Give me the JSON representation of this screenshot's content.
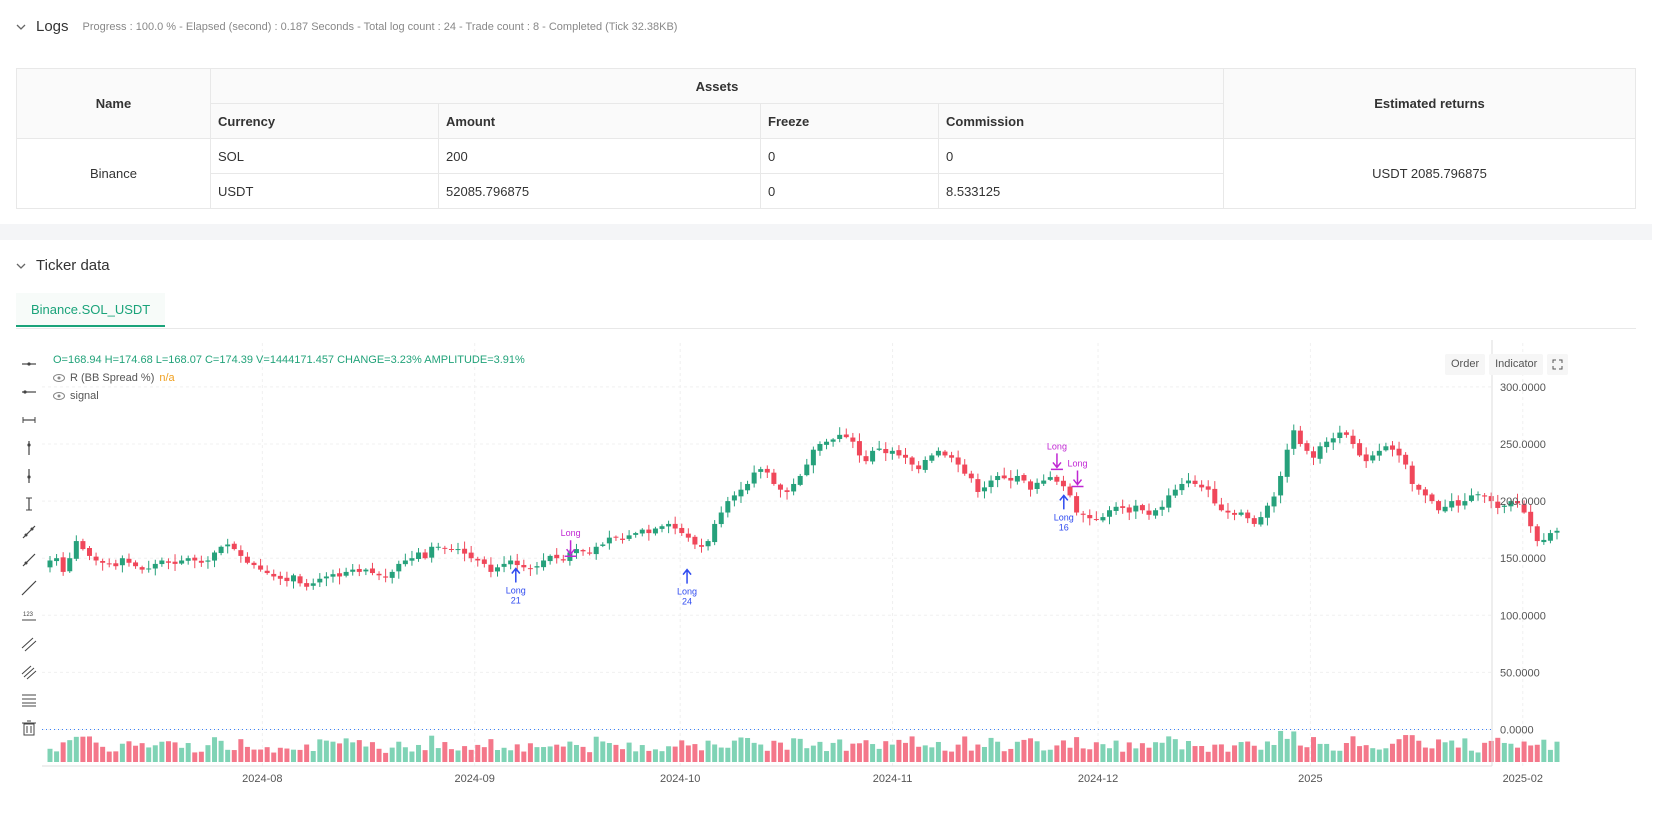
{
  "logs": {
    "title": "Logs",
    "summary": "Progress : 100.0 % - Elapsed (second) : 0.187  Seconds - Total log count : 24 - Trade count : 8 - Completed (Tick 32.38KB)"
  },
  "assets_table": {
    "col_name": "Name",
    "col_assets": "Assets",
    "col_returns": "Estimated returns",
    "sub_currency": "Currency",
    "sub_amount": "Amount",
    "sub_freeze": "Freeze",
    "sub_commission": "Commission",
    "exchange": "Binance",
    "rows": [
      {
        "currency": "SOL",
        "amount": "200",
        "freeze": "0",
        "commission": "0"
      },
      {
        "currency": "USDT",
        "amount": "52085.796875",
        "freeze": "0",
        "commission": "8.533125"
      }
    ],
    "returns": "USDT 2085.796875"
  },
  "ticker": {
    "title": "Ticker data",
    "tab": "Binance.SOL_USDT",
    "ohlc": "O=168.94 H=174.68 L=168.07 C=174.39 V=1444171.457 CHANGE=3.23% AMPLITUDE=3.91%",
    "indicator1": "R (BB Spread %)",
    "indicator1_value": "n/a",
    "indicator2": "signal",
    "btn_order": "Order",
    "btn_indicator": "Indicator"
  },
  "colors": {
    "up": "#26a17b",
    "down": "#f0475a",
    "long_entry": "#2f4bf0",
    "long_exit": "#c026d3",
    "vol_up": "#7fd3b5",
    "vol_down": "#f4778a"
  },
  "chart_data": {
    "type": "candlestick",
    "symbol": "Binance.SOL_USDT",
    "x_ticks": [
      "2024-08",
      "2024-09",
      "2024-10",
      "2024-11",
      "2024-12",
      "2025",
      "2025-02"
    ],
    "y_ticks": [
      "300.0000",
      "250.0000",
      "200.0000",
      "150.0000",
      "100.0000",
      "50.0000",
      "0.0000"
    ],
    "ylim": [
      -25,
      330
    ],
    "start_date": "2024-07-01",
    "end_date": "2025-02-06",
    "close": [
      148,
      150,
      138,
      150,
      165,
      158,
      152,
      148,
      146,
      145,
      143,
      150,
      146,
      143,
      140,
      141,
      145,
      148,
      146,
      145,
      148,
      150,
      148,
      146,
      148,
      155,
      160,
      162,
      158,
      152,
      146,
      144,
      140,
      137,
      134,
      132,
      130,
      135,
      128,
      125,
      128,
      132,
      134,
      136,
      134,
      138,
      140,
      138,
      140,
      137,
      135,
      133,
      138,
      145,
      148,
      150,
      155,
      150,
      160,
      160,
      159,
      158,
      158,
      154,
      150,
      148,
      145,
      138,
      142,
      145,
      148,
      144,
      142,
      141,
      143,
      148,
      152,
      150,
      148,
      155,
      158,
      156,
      154,
      160,
      162,
      168,
      168,
      166,
      170,
      172,
      175,
      172,
      176,
      178,
      180,
      176,
      172,
      168,
      162,
      160,
      165,
      180,
      190,
      200,
      205,
      210,
      215,
      225,
      228,
      225,
      215,
      210,
      208,
      215,
      222,
      232,
      245,
      250,
      252,
      254,
      258,
      256,
      252,
      240,
      235,
      244,
      246,
      242,
      244,
      240,
      238,
      232,
      228,
      236,
      240,
      244,
      240,
      238,
      232,
      224,
      220,
      208,
      212,
      218,
      222,
      220,
      218,
      222,
      218,
      210,
      216,
      218,
      221,
      217,
      213,
      205,
      190,
      188,
      185,
      184,
      186,
      192,
      195,
      194,
      190,
      196,
      192,
      188,
      192,
      195,
      205,
      210,
      215,
      218,
      215,
      212,
      210,
      198,
      192,
      190,
      188,
      190,
      185,
      180,
      186,
      196,
      204,
      222,
      245,
      262,
      250,
      244,
      238,
      248,
      252,
      255,
      260,
      258,
      250,
      240,
      235,
      240,
      244,
      248,
      245,
      240,
      232,
      215,
      210,
      205,
      200,
      192,
      195,
      200,
      196,
      200,
      205,
      206,
      204,
      200,
      194,
      196,
      200,
      198,
      190,
      178,
      165,
      166,
      172,
      174
    ]
  }
}
